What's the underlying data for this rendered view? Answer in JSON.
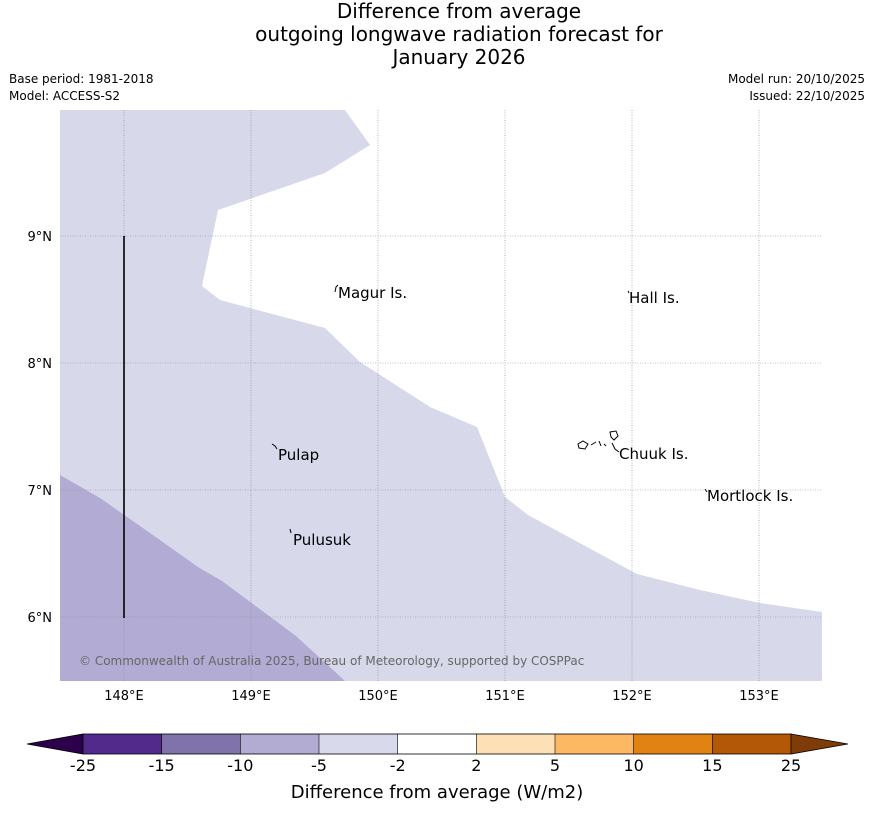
{
  "title": {
    "line1": "Difference from average",
    "line2": "outgoing longwave radiation forecast for",
    "line3": "January 2026"
  },
  "meta": {
    "base_period": "Base period: 1981-2018",
    "model": "Model: ACCESS-S2",
    "model_run": "Model run: 20/10/2025",
    "issued": "Issued: 22/10/2025"
  },
  "map": {
    "lon_range": [
      147.5,
      153.5
    ],
    "lat_range": [
      5.5,
      10.0
    ],
    "lon_ticks": [
      {
        "value": 148,
        "label": "148°E"
      },
      {
        "value": 149,
        "label": "149°E"
      },
      {
        "value": 150,
        "label": "150°E"
      },
      {
        "value": 151,
        "label": "151°E"
      },
      {
        "value": 152,
        "label": "152°E"
      },
      {
        "value": 153,
        "label": "153°E"
      }
    ],
    "lat_ticks": [
      {
        "value": 9,
        "label": "9°N"
      },
      {
        "value": 8,
        "label": "8°N"
      },
      {
        "value": 7,
        "label": "7°N"
      },
      {
        "value": 6,
        "label": "6°N"
      }
    ],
    "places": [
      {
        "name": "Magur Is.",
        "lon": 149.67,
        "lat": 8.57
      },
      {
        "name": "Hall Is.",
        "lon": 151.98,
        "lat": 8.55
      },
      {
        "name": "Pulap",
        "lon": 149.18,
        "lat": 7.35
      },
      {
        "name": "Chuuk Is.",
        "lon": 151.85,
        "lat": 7.33
      },
      {
        "name": "Mortlock Is.",
        "lon": 152.6,
        "lat": 7.0
      },
      {
        "name": "Pulusuk",
        "lon": 149.3,
        "lat": 6.68
      }
    ],
    "copyright": "© Commonwealth of Australia 2025, Bureau of Meteorology, supported by COSPPac",
    "colors": {
      "light_purple": "#d7d8ea",
      "mid_purple": "#b2acd4",
      "white": "#ffffff"
    }
  },
  "colorbar": {
    "title": "Difference from average (W/m2)",
    "labels": [
      "-25",
      "-15",
      "-10",
      "-5",
      "-2",
      "2",
      "5",
      "10",
      "15",
      "25"
    ],
    "colors": [
      "#522a8c",
      "#8073ac",
      "#b2abd2",
      "#d8daeb",
      "#ffffff",
      "#fee0b6",
      "#fdb863",
      "#e08214",
      "#b35806"
    ],
    "under_color": "#2d004b",
    "over_color": "#7f3b08"
  }
}
